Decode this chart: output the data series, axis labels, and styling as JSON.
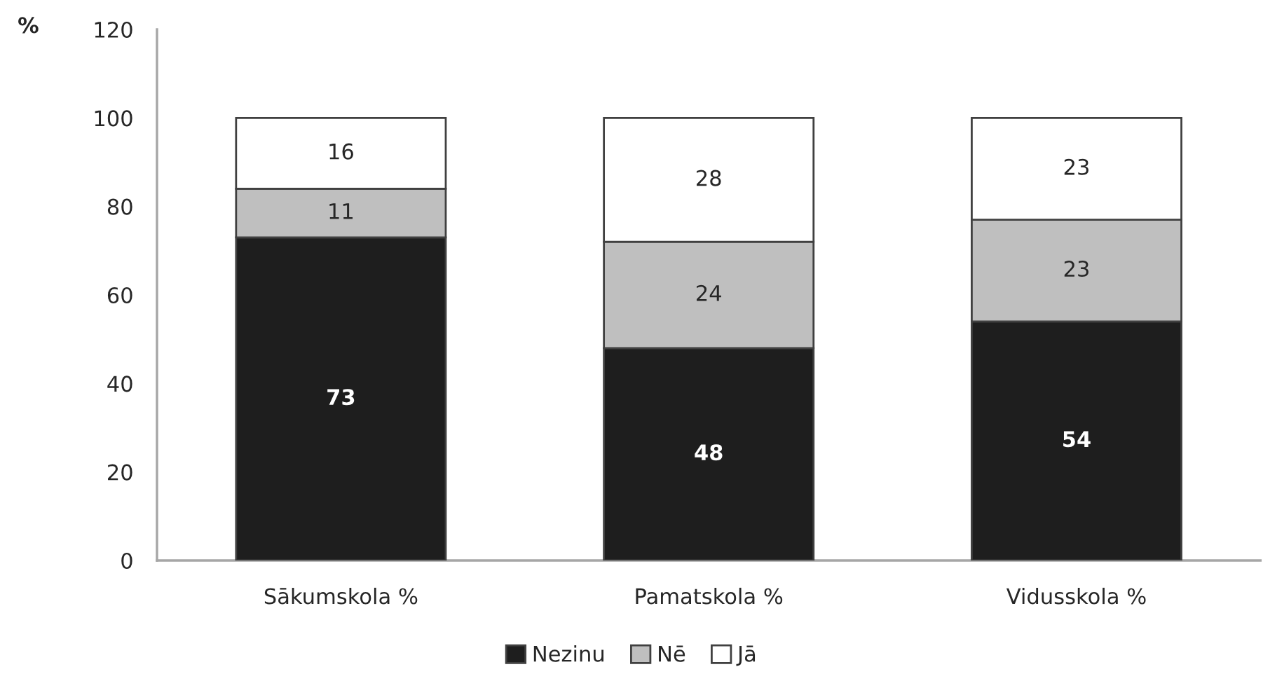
{
  "chart_data": {
    "type": "bar",
    "stacked": true,
    "ylabel": "%",
    "categories": [
      "Sākumskola %",
      "Pamatskola %",
      "Vidusskola %"
    ],
    "series": [
      {
        "name": "Nezinu",
        "color": "#1e1e1e",
        "values": [
          73,
          48,
          54
        ]
      },
      {
        "name": "Nē",
        "color": "#bfbfbf",
        "values": [
          11,
          24,
          23
        ]
      },
      {
        "name": "Jā",
        "color": "#ffffff",
        "values": [
          16,
          28,
          23
        ]
      }
    ],
    "ylim": [
      0,
      120
    ],
    "yticks": [
      0,
      20,
      40,
      60,
      80,
      100,
      120
    ],
    "data_labels": true,
    "legend": "bottom",
    "grid": false
  }
}
